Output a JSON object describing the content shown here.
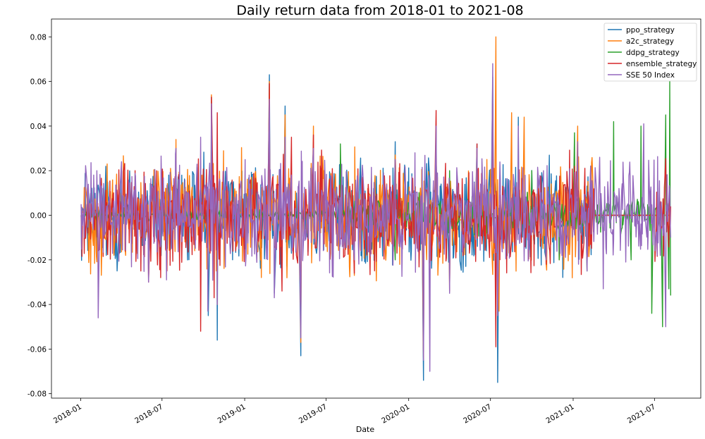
{
  "chart_data": {
    "type": "line",
    "title": "Daily return data from 2018-01 to 2021-08",
    "xlabel": "Date",
    "ylabel": "",
    "xlim": [
      "2017-10-28",
      "2021-10-12"
    ],
    "ylim": [
      -0.082,
      0.088
    ],
    "grid": false,
    "legend_position": "top-right",
    "x_ticks": [
      "2018-01",
      "2018-07",
      "2019-01",
      "2019-07",
      "2020-01",
      "2020-07",
      "2021-01",
      "2021-07"
    ],
    "y_ticks": [
      "-0.08",
      "-0.06",
      "-0.04",
      "-0.02",
      "0.00",
      "0.02",
      "0.04",
      "0.06",
      "0.08"
    ],
    "series": [
      {
        "name": "ppo_strategy",
        "color": "#1f77b4",
        "points": [
          [
            "2018-01-02",
            0.0
          ],
          [
            "2018-04-02",
            0.02
          ],
          [
            "2018-06-01",
            -0.025
          ],
          [
            "2018-08-01",
            0.03
          ],
          [
            "2018-10-12",
            -0.045
          ],
          [
            "2018-10-19",
            0.053
          ],
          [
            "2018-11-01",
            -0.056
          ],
          [
            "2018-12-03",
            0.015
          ],
          [
            "2019-02-25",
            0.063
          ],
          [
            "2019-03-08",
            -0.035
          ],
          [
            "2019-04-01",
            0.049
          ],
          [
            "2019-05-06",
            -0.063
          ],
          [
            "2019-06-03",
            0.02
          ],
          [
            "2019-09-02",
            -0.01
          ],
          [
            "2019-12-02",
            0.033
          ],
          [
            "2020-02-03",
            -0.074
          ],
          [
            "2020-03-02",
            0.025
          ],
          [
            "2020-04-01",
            -0.03
          ],
          [
            "2020-06-01",
            0.032
          ],
          [
            "2020-07-06",
            0.062
          ],
          [
            "2020-07-17",
            -0.075
          ],
          [
            "2020-09-01",
            0.044
          ],
          [
            "2020-11-02",
            -0.02
          ],
          [
            "2021-01-04",
            0.02
          ],
          [
            "2021-02-18",
            0.0
          ],
          [
            "2021-08-06",
            0.0
          ]
        ]
      },
      {
        "name": "a2c_strategy",
        "color": "#ff7f0e",
        "points": [
          [
            "2018-01-02",
            0.0
          ],
          [
            "2018-03-01",
            0.023
          ],
          [
            "2018-06-01",
            -0.028
          ],
          [
            "2018-08-01",
            0.034
          ],
          [
            "2018-10-19",
            0.054
          ],
          [
            "2018-11-01",
            -0.04
          ],
          [
            "2019-01-02",
            0.02
          ],
          [
            "2019-02-25",
            0.06
          ],
          [
            "2019-04-01",
            0.045
          ],
          [
            "2019-05-06",
            -0.057
          ],
          [
            "2019-06-03",
            0.04
          ],
          [
            "2019-09-02",
            -0.027
          ],
          [
            "2019-12-02",
            0.027
          ],
          [
            "2020-02-03",
            -0.064
          ],
          [
            "2020-04-01",
            -0.034
          ],
          [
            "2020-06-01",
            0.03
          ],
          [
            "2020-07-13",
            0.08
          ],
          [
            "2020-07-20",
            -0.043
          ],
          [
            "2020-08-17",
            0.046
          ],
          [
            "2020-09-14",
            0.044
          ],
          [
            "2020-11-02",
            -0.022
          ],
          [
            "2021-01-11",
            0.04
          ],
          [
            "2021-02-18",
            0.0
          ],
          [
            "2021-08-06",
            0.0
          ]
        ]
      },
      {
        "name": "ddpg_strategy",
        "color": "#2ca02c",
        "points": [
          [
            "2018-01-02",
            0.0
          ],
          [
            "2019-08-02",
            0.032
          ],
          [
            "2019-12-02",
            -0.02
          ],
          [
            "2020-04-01",
            0.02
          ],
          [
            "2020-10-01",
            0.02
          ],
          [
            "2020-12-01",
            -0.02
          ],
          [
            "2021-01-04",
            0.037
          ],
          [
            "2021-02-01",
            -0.025
          ],
          [
            "2021-04-01",
            0.042
          ],
          [
            "2021-05-10",
            -0.02
          ],
          [
            "2021-06-01",
            0.04
          ],
          [
            "2021-06-25",
            -0.044
          ],
          [
            "2021-07-19",
            -0.05
          ],
          [
            "2021-07-26",
            0.045
          ],
          [
            "2021-08-02",
            -0.033
          ],
          [
            "2021-08-04",
            0.06
          ],
          [
            "2021-08-06",
            -0.036
          ]
        ]
      },
      {
        "name": "ensemble_strategy",
        "color": "#d62728",
        "points": [
          [
            "2018-01-02",
            0.0
          ],
          [
            "2018-05-02",
            0.02
          ],
          [
            "2018-06-01",
            -0.03
          ],
          [
            "2018-09-25",
            -0.052
          ],
          [
            "2018-10-19",
            0.053
          ],
          [
            "2018-10-25",
            -0.037
          ],
          [
            "2018-11-01",
            0.046
          ],
          [
            "2019-02-25",
            0.059
          ],
          [
            "2019-03-25",
            -0.034
          ],
          [
            "2019-04-15",
            0.035
          ],
          [
            "2019-05-06",
            -0.049
          ],
          [
            "2019-06-03",
            0.036
          ],
          [
            "2019-09-02",
            -0.026
          ],
          [
            "2019-12-02",
            0.025
          ],
          [
            "2020-02-03",
            -0.061
          ],
          [
            "2020-03-02",
            0.047
          ],
          [
            "2020-04-01",
            -0.034
          ],
          [
            "2020-06-01",
            0.032
          ],
          [
            "2020-07-06",
            0.05
          ],
          [
            "2020-07-13",
            -0.059
          ],
          [
            "2020-09-01",
            0.02
          ],
          [
            "2020-11-02",
            -0.022
          ],
          [
            "2021-01-04",
            0.022
          ],
          [
            "2021-02-18",
            0.0
          ],
          [
            "2021-07-01",
            0.0
          ],
          [
            "2021-08-06",
            0.004
          ]
        ]
      },
      {
        "name": "SSE 50 Index",
        "color": "#9467bd",
        "points": [
          [
            "2018-01-02",
            0.005
          ],
          [
            "2018-02-06",
            0.02
          ],
          [
            "2018-02-09",
            -0.046
          ],
          [
            "2018-04-02",
            0.024
          ],
          [
            "2018-06-01",
            -0.03
          ],
          [
            "2018-08-01",
            0.03
          ],
          [
            "2018-09-25",
            0.035
          ],
          [
            "2018-10-11",
            -0.043
          ],
          [
            "2018-10-19",
            0.05
          ],
          [
            "2018-11-01",
            -0.04
          ],
          [
            "2019-01-02",
            0.025
          ],
          [
            "2019-02-25",
            0.052
          ],
          [
            "2019-03-08",
            -0.037
          ],
          [
            "2019-04-01",
            0.035
          ],
          [
            "2019-05-06",
            -0.055
          ],
          [
            "2019-06-03",
            0.03
          ],
          [
            "2019-09-02",
            -0.02
          ],
          [
            "2019-12-02",
            0.025
          ],
          [
            "2020-02-03",
            -0.065
          ],
          [
            "2020-02-17",
            -0.07
          ],
          [
            "2020-03-02",
            0.04
          ],
          [
            "2020-04-01",
            -0.035
          ],
          [
            "2020-06-01",
            0.03
          ],
          [
            "2020-07-06",
            0.068
          ],
          [
            "2020-07-17",
            -0.045
          ],
          [
            "2020-09-01",
            0.04
          ],
          [
            "2020-11-02",
            -0.02
          ],
          [
            "2021-01-11",
            0.033
          ],
          [
            "2021-02-01",
            -0.025
          ],
          [
            "2021-03-01",
            0.026
          ],
          [
            "2021-03-09",
            -0.033
          ],
          [
            "2021-05-01",
            0.02
          ],
          [
            "2021-06-07",
            0.041
          ],
          [
            "2021-07-26",
            -0.05
          ],
          [
            "2021-08-06",
            -0.01
          ]
        ]
      }
    ]
  }
}
